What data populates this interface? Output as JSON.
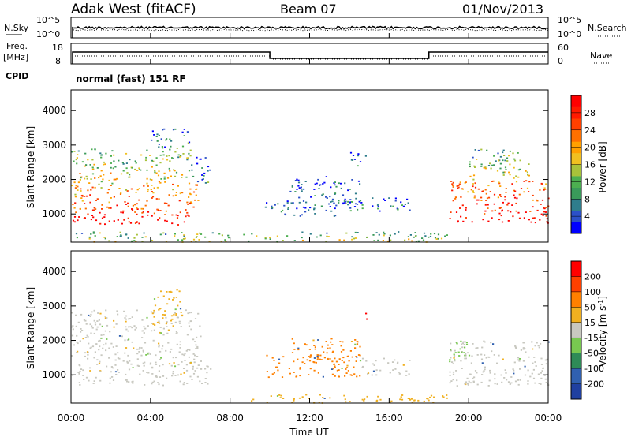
{
  "header": {
    "station": "Adak West (fitACF)",
    "beam": "Beam 07",
    "date": "01/Nov/2013"
  },
  "labels": {
    "nsky": "N.Sky",
    "nsearch": "N.Search",
    "freq_line1": "Freq.",
    "freq_line2": "[MHz]",
    "nave": "Nave",
    "cpid": "CPID",
    "cpid_value": "normal (fast) 151 RF",
    "noise_top_left": "10^5",
    "noise_bottom_left": "10^0",
    "noise_top_right": "10^5",
    "noise_bottom_right": "10^0",
    "freq_top": "18",
    "freq_bottom": "8",
    "nave_top": "60",
    "nave_bottom": "0"
  },
  "time_axis": {
    "ticks": [
      "00:00",
      "04:00",
      "08:00",
      "12:00",
      "16:00",
      "20:00",
      "00:00"
    ],
    "label": "Time UT"
  },
  "chart_data": [
    {
      "type": "heatmap",
      "name": "power",
      "ylabel": "Slant Range [km]",
      "yticks": [
        1000,
        2000,
        3000,
        4000
      ],
      "ylim": [
        180,
        4600
      ],
      "xlim_hours": [
        0,
        24
      ],
      "colorbar": {
        "label": "Power [dB]",
        "ticks": [
          "28",
          "24",
          "20",
          "16",
          "12",
          "8",
          "4"
        ],
        "colors": [
          "#0000ff",
          "#2b50c8",
          "#2f7d8c",
          "#3a9a5a",
          "#4caf50",
          "#a8c23a",
          "#f0c020",
          "#ffa000",
          "#ff7000",
          "#ff4000",
          "#ff1a00",
          "#ff0000"
        ]
      },
      "patches": [
        {
          "t0": 0.0,
          "t1": 6.0,
          "r0": 700,
          "r1": 1100,
          "level": 0.85
        },
        {
          "t0": 0.0,
          "t1": 6.5,
          "r0": 1100,
          "r1": 1900,
          "level": 0.6
        },
        {
          "t0": 0.0,
          "t1": 6.0,
          "r0": 1900,
          "r1": 2900,
          "level": 0.35
        },
        {
          "t0": 4.0,
          "t1": 6.0,
          "r0": 2900,
          "r1": 3500,
          "level": 0.1
        },
        {
          "t0": 6.0,
          "t1": 7.0,
          "r0": 1900,
          "r1": 2700,
          "level": 0.05
        },
        {
          "t0": 9.7,
          "t1": 14.0,
          "r0": 950,
          "r1": 1400,
          "level": 0.05
        },
        {
          "t0": 11.0,
          "t1": 14.5,
          "r0": 1300,
          "r1": 2100,
          "level": 0.05
        },
        {
          "t0": 13.5,
          "t1": 17.0,
          "r0": 1100,
          "r1": 1500,
          "level": 0.05
        },
        {
          "t0": 14.0,
          "t1": 15.0,
          "r0": 2400,
          "r1": 2800,
          "level": 0.05
        },
        {
          "t0": 19.0,
          "t1": 24.0,
          "r0": 750,
          "r1": 1200,
          "level": 0.85
        },
        {
          "t0": 19.0,
          "t1": 24.0,
          "r0": 1200,
          "r1": 2000,
          "level": 0.65
        },
        {
          "t0": 20.0,
          "t1": 23.0,
          "r0": 2000,
          "r1": 2900,
          "level": 0.3
        },
        {
          "t0": 0.0,
          "t1": 19.0,
          "r0": 200,
          "r1": 500,
          "level": 0.3
        }
      ]
    },
    {
      "type": "heatmap",
      "name": "velocity",
      "ylabel": "Slant Range [km]",
      "yticks": [
        1000,
        2000,
        3000,
        4000
      ],
      "ylim": [
        180,
        4600
      ],
      "xlim_hours": [
        0,
        24
      ],
      "colorbar": {
        "label": "Velocity [m s^-1]",
        "ticks": [
          "200",
          "100",
          "50",
          "15",
          "-15",
          "-50",
          "-100",
          "-200"
        ],
        "colors": [
          "#2040a0",
          "#3060b0",
          "#2e8b57",
          "#78c850",
          "#c8c8c0",
          "#f0b020",
          "#ff8000",
          "#ff4000",
          "#ff0000"
        ]
      },
      "patches": [
        {
          "t0": 0.0,
          "t1": 7.0,
          "r0": 700,
          "r1": 1300,
          "color": "#c8c8c0"
        },
        {
          "t0": 0.0,
          "t1": 6.5,
          "r0": 1300,
          "r1": 2900,
          "color": "#c8c8c0"
        },
        {
          "t0": 4.0,
          "t1": 5.5,
          "r0": 2200,
          "r1": 3500,
          "color": "#f0b020"
        },
        {
          "t0": 9.8,
          "t1": 14.5,
          "r0": 950,
          "r1": 1600,
          "color": "#ff8000"
        },
        {
          "t0": 11.0,
          "t1": 14.5,
          "r0": 1400,
          "r1": 2100,
          "color": "#ff8000"
        },
        {
          "t0": 14.5,
          "t1": 17.0,
          "r0": 1000,
          "r1": 1500,
          "color": "#c8c8c0"
        },
        {
          "t0": 14.5,
          "t1": 15.0,
          "r0": 2600,
          "r1": 2850,
          "color": "#ff0000"
        },
        {
          "t0": 19.0,
          "t1": 24.0,
          "r0": 700,
          "r1": 2000,
          "color": "#c8c8c0"
        },
        {
          "t0": 19.0,
          "t1": 20.0,
          "r0": 1200,
          "r1": 2000,
          "color": "#78c850"
        },
        {
          "t0": 9.0,
          "t1": 19.0,
          "r0": 200,
          "r1": 450,
          "color": "#f0b020"
        }
      ]
    }
  ]
}
